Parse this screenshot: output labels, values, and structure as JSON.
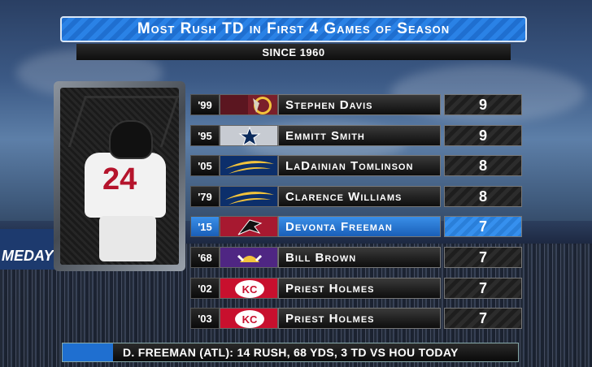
{
  "title": "Most Rush TD in First 4 Games of Season",
  "subtitle": "SINCE 1960",
  "background": {
    "banner_text": "MEDAY"
  },
  "photo": {
    "jersey_number": "24"
  },
  "colors": {
    "highlight": "#2a82e6",
    "title_bar": "#1f6fd0",
    "row_dark": "#111111"
  },
  "rows": [
    {
      "year": "'99",
      "logo": "redskins-logo",
      "name": "Stephen Davis",
      "value": "9",
      "highlight": false
    },
    {
      "year": "'95",
      "logo": "cowboys-logo",
      "name": "Emmitt Smith",
      "value": "9",
      "highlight": false
    },
    {
      "year": "'05",
      "logo": "chargers-logo",
      "name": "LaDainian Tomlinson",
      "value": "8",
      "highlight": false
    },
    {
      "year": "'79",
      "logo": "chargers-logo",
      "name": "Clarence Williams",
      "value": "8",
      "highlight": false
    },
    {
      "year": "'15",
      "logo": "falcons-logo",
      "name": "Devonta Freeman",
      "value": "7",
      "highlight": true
    },
    {
      "year": "'68",
      "logo": "vikings-logo",
      "name": "Bill Brown",
      "value": "7",
      "highlight": false
    },
    {
      "year": "'02",
      "logo": "chiefs-logo",
      "name": "Priest Holmes",
      "value": "7",
      "highlight": false
    },
    {
      "year": "'03",
      "logo": "chiefs-logo",
      "name": "Priest Holmes",
      "value": "7",
      "highlight": false
    }
  ],
  "footer": {
    "text": "D. FREEMAN (ATL):  14 RUSH, 68 YDS, 3 TD VS HOU TODAY"
  }
}
